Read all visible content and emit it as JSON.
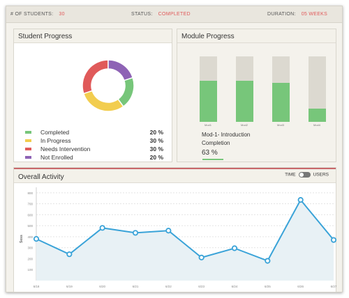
{
  "topbar": {
    "students_label": "# OF STUDENTS:",
    "students_value": "30",
    "status_label": "STATUS:",
    "status_value": "COMPLETED",
    "duration_label": "DURATION:",
    "duration_value": "05 WEEKS"
  },
  "student_progress": {
    "title": "Student Progress",
    "items": [
      {
        "label": "Completed",
        "pct": "20 %",
        "value": 20,
        "color": "#77c67a"
      },
      {
        "label": "In Progress",
        "pct": "30 %",
        "value": 30,
        "color": "#f2cd4f"
      },
      {
        "label": "Needs Intervention",
        "pct": "30 %",
        "value": 30,
        "color": "#e05a5a"
      },
      {
        "label": "Not Enrolled",
        "pct": "20 %",
        "value": 20,
        "color": "#8e63b5"
      }
    ]
  },
  "module_progress": {
    "title": "Module Progress",
    "modules": [
      {
        "label": "Mod1",
        "value": 63
      },
      {
        "label": "Mod2",
        "value": 63
      },
      {
        "label": "Mod3",
        "value": 60
      },
      {
        "label": "Mod4",
        "value": 20
      }
    ],
    "selected_title_line1": "Mod-1- Introduction",
    "selected_title_line2": "Completion",
    "selected_pct": "63 %"
  },
  "activity": {
    "title": "Overall Activity",
    "toggle_left": "TIME",
    "toggle_right": "USERS"
  },
  "chart_data": {
    "type": "area",
    "categories": [
      "6/18",
      "6/19",
      "6/20",
      "6/21",
      "6/22",
      "6/23",
      "6/24",
      "6/25",
      "6/26",
      "6/27"
    ],
    "values": [
      380,
      240,
      480,
      435,
      455,
      210,
      295,
      180,
      735,
      370
    ],
    "yticks": [
      100,
      200,
      300,
      400,
      500,
      600,
      700,
      800
    ],
    "ylim": [
      0,
      850
    ],
    "ylabel": "Sess",
    "grid": true,
    "color": "#3aa3d8"
  }
}
